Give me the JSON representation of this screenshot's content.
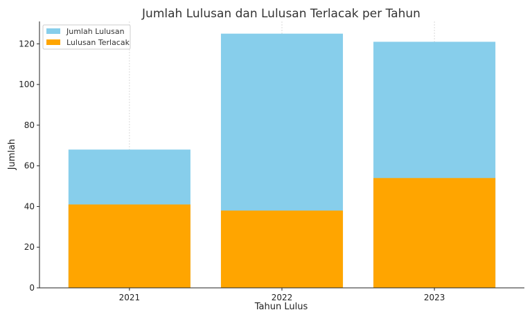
{
  "chart_data": {
    "type": "bar",
    "title": "Jumlah Lulusan dan Lulusan Terlacak per Tahun",
    "xlabel": "Tahun Lulus",
    "ylabel": "Jumlah",
    "categories": [
      "2021",
      "2022",
      "2023"
    ],
    "series": [
      {
        "name": "Jumlah Lulusan",
        "values": [
          68,
          125,
          121
        ],
        "color": "#87CEEB"
      },
      {
        "name": "Lulusan Terlacak",
        "values": [
          41,
          38,
          54
        ],
        "color": "#FFA500"
      }
    ],
    "ylim": [
      0,
      131
    ],
    "yticks": [
      0,
      20,
      40,
      60,
      80,
      100,
      120
    ],
    "grid": "vertical dashed at categories",
    "legend": "top-left",
    "overlay": true
  }
}
